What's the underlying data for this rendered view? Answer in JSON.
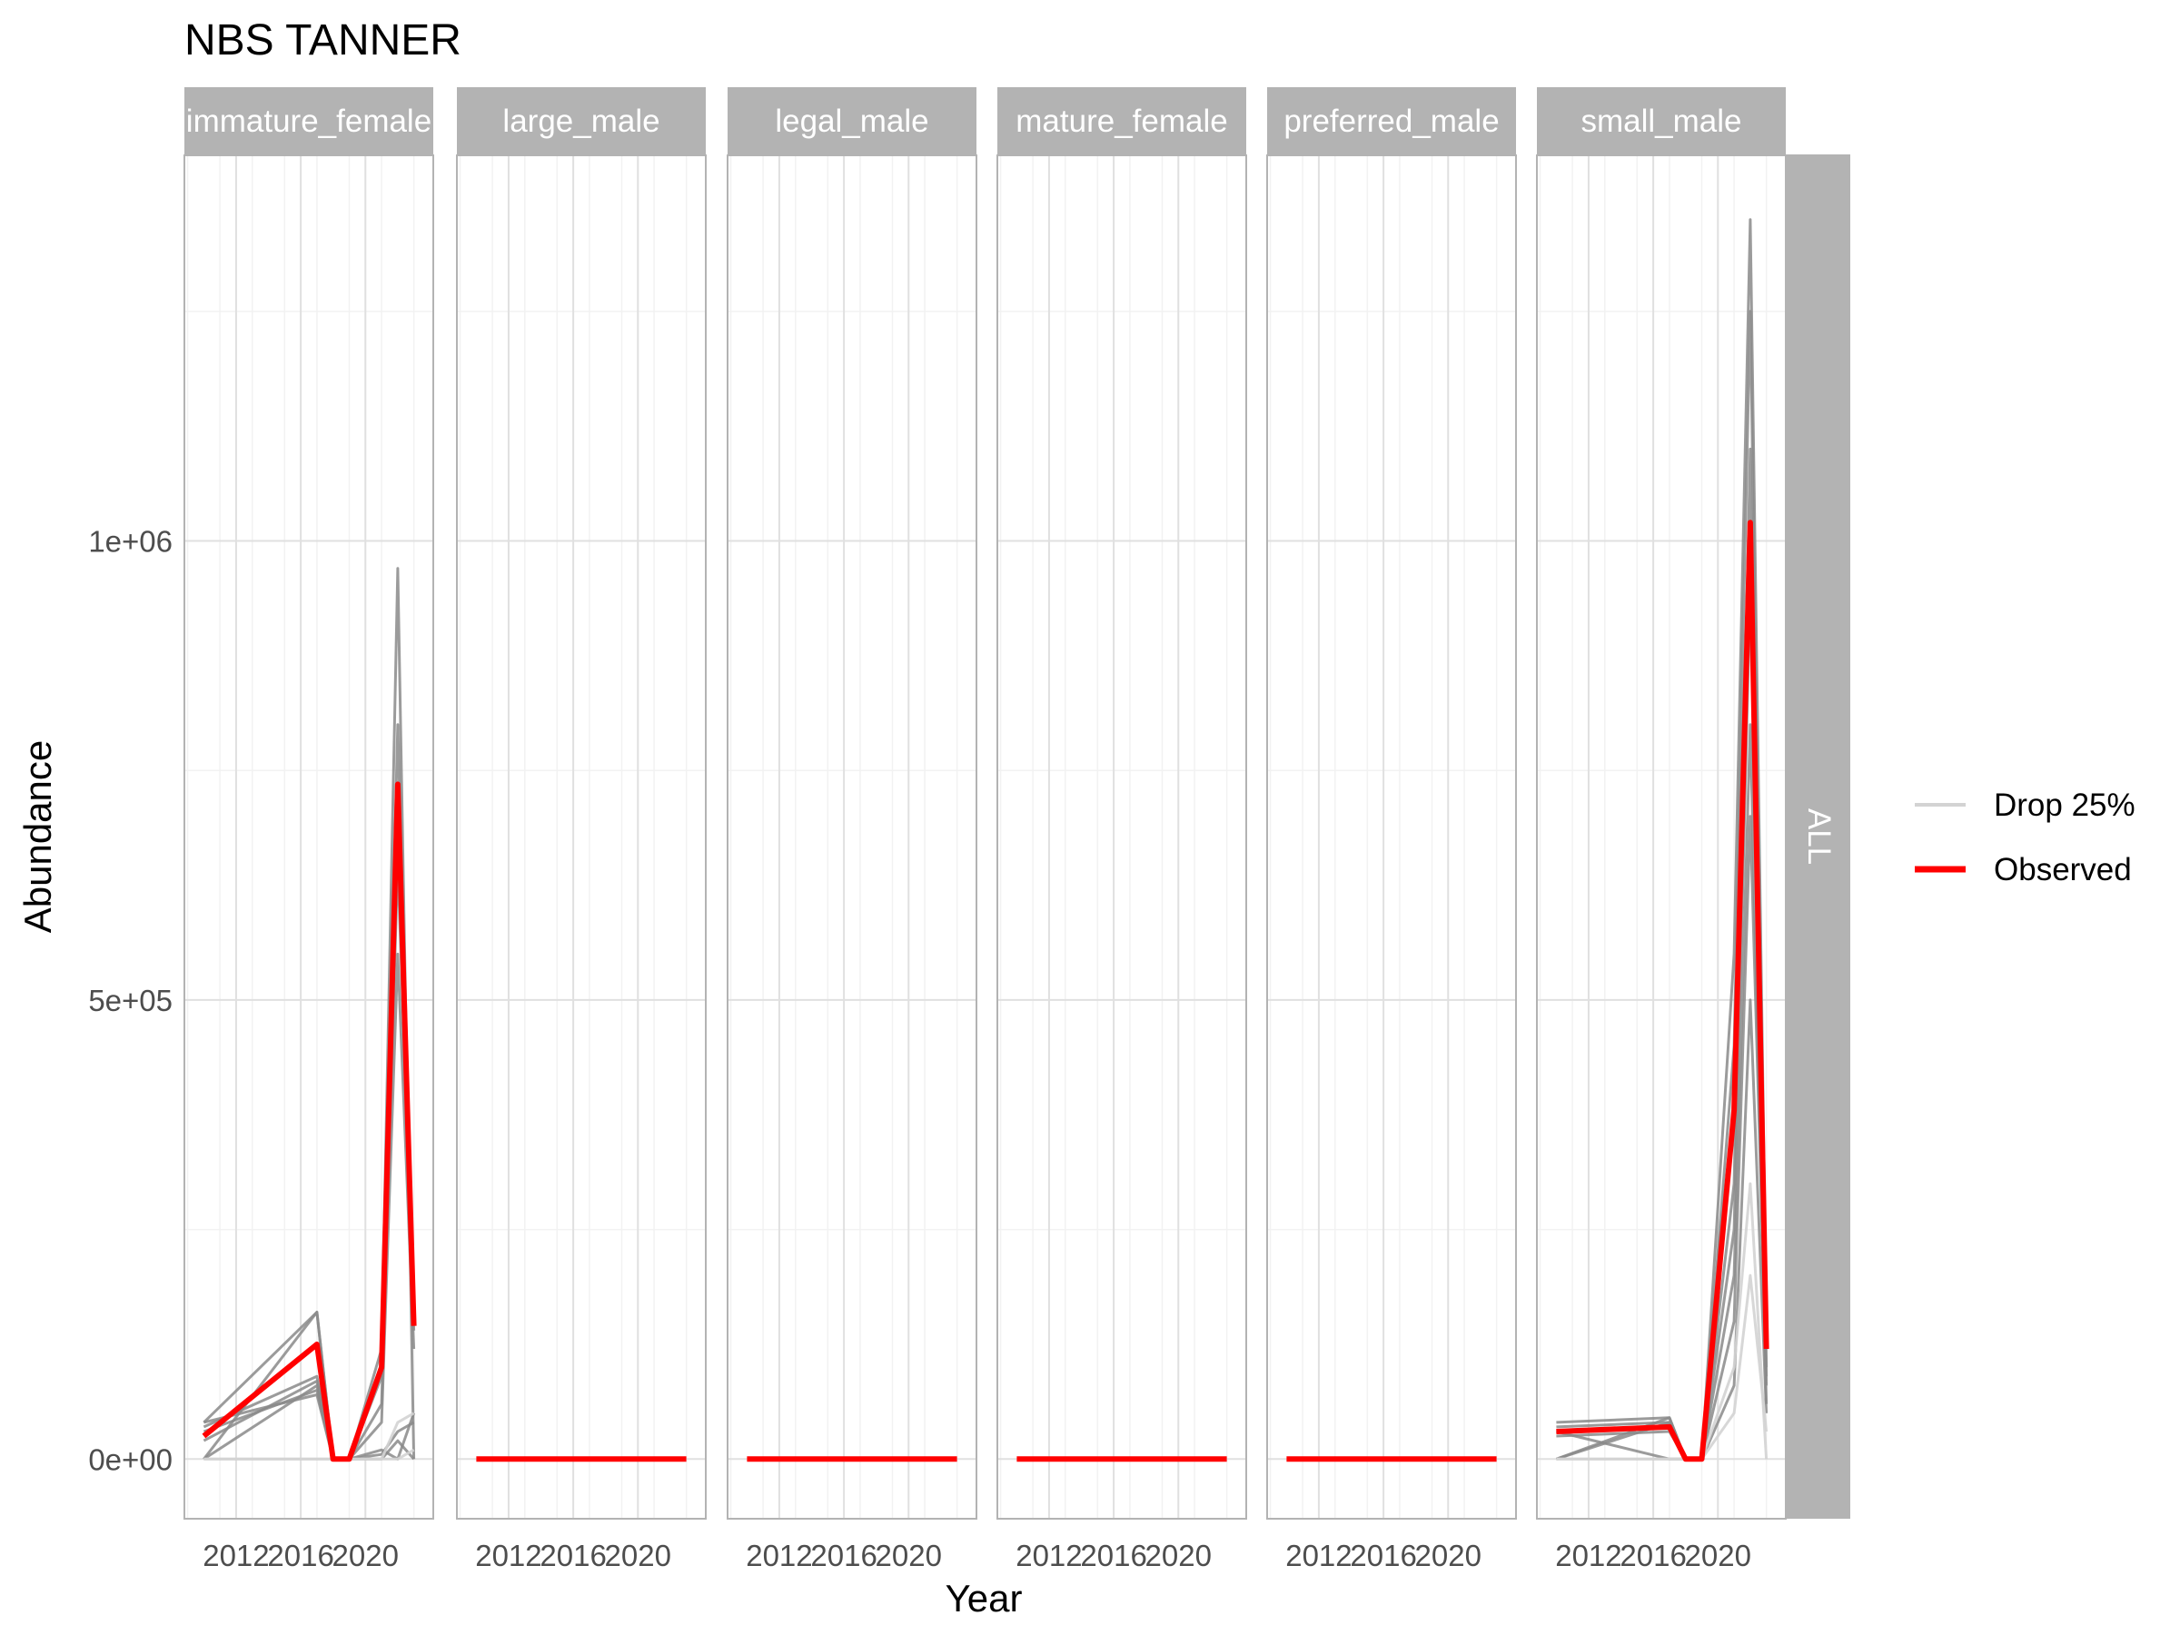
{
  "colors": {
    "observed": "#ff0000",
    "drop_light": "#d3d3d3",
    "drop_dark": "#8a8a8a",
    "strip_bg": "#b3b3b3",
    "panel_border": "#b3b3b3",
    "grid_major": "#e0e0e0",
    "grid_minor": "#f2f2f2"
  },
  "chart_data": {
    "type": "line",
    "title": "NBS TANNER",
    "xlabel": "Year",
    "ylabel": "Abundance",
    "row_strip": "ALL",
    "xlim": [
      2008.8,
      2024.2
    ],
    "ylim": [
      -65000,
      1420000
    ],
    "x_ticks": [
      2012,
      2016,
      2020
    ],
    "x_tick_labels": [
      "2012",
      "2016",
      "2020"
    ],
    "y_ticks": [
      0,
      500000,
      1000000
    ],
    "y_tick_labels": [
      "0e+00",
      "5e+05",
      "1e+06"
    ],
    "grid": true,
    "legend_position": "right",
    "legend": [
      {
        "key": "drop",
        "label": "Drop 25%"
      },
      {
        "key": "observed",
        "label": "Observed"
      }
    ],
    "facets": [
      {
        "label": "immature_female",
        "observed": {
          "x": [
            2010,
            2017,
            2018,
            2019,
            2021,
            2022,
            2023
          ],
          "y": [
            25000,
            125000,
            0,
            0,
            100000,
            735000,
            145000
          ]
        },
        "drops": [
          {
            "x": [
              2010,
              2017,
              2018,
              2019,
              2021,
              2022,
              2023
            ],
            "y": [
              40000,
              160000,
              0,
              0,
              120000,
              970000,
              0
            ],
            "shade": "dark"
          },
          {
            "x": [
              2010,
              2017,
              2018,
              2019,
              2021,
              2022,
              2023
            ],
            "y": [
              0,
              160000,
              0,
              0,
              90000,
              800000,
              150000
            ],
            "shade": "dark"
          },
          {
            "x": [
              2010,
              2017,
              2018,
              2019,
              2021,
              2022,
              2023
            ],
            "y": [
              35000,
              90000,
              0,
              0,
              60000,
              650000,
              140000
            ],
            "shade": "dark"
          },
          {
            "x": [
              2010,
              2017,
              2018,
              2019,
              2021,
              2022,
              2023
            ],
            "y": [
              0,
              80000,
              0,
              0,
              40000,
              550000,
              120000
            ],
            "shade": "dark"
          },
          {
            "x": [
              2010,
              2017,
              2018,
              2019,
              2021,
              2022,
              2023
            ],
            "y": [
              30000,
              75000,
              0,
              0,
              10000,
              0,
              50000
            ],
            "shade": "dark"
          },
          {
            "x": [
              2010,
              2017,
              2018,
              2019,
              2021,
              2022,
              2023
            ],
            "y": [
              20000,
              85000,
              0,
              0,
              5000,
              30000,
              40000
            ],
            "shade": "dark"
          },
          {
            "x": [
              2010,
              2017,
              2018,
              2019,
              2021,
              2022,
              2023
            ],
            "y": [
              40000,
              70000,
              0,
              0,
              0,
              20000,
              0
            ],
            "shade": "dark"
          },
          {
            "x": [
              2010,
              2017,
              2018,
              2019,
              2021,
              2022,
              2023
            ],
            "y": [
              0,
              0,
              0,
              0,
              0,
              40000,
              50000
            ],
            "shade": "light"
          },
          {
            "x": [
              2010,
              2017,
              2018,
              2019,
              2021,
              2022,
              2023
            ],
            "y": [
              0,
              0,
              0,
              0,
              0,
              0,
              10000
            ],
            "shade": "light"
          }
        ]
      },
      {
        "label": "large_male",
        "observed": {
          "x": [
            2010,
            2017,
            2018,
            2019,
            2021,
            2022,
            2023
          ],
          "y": [
            0,
            0,
            0,
            0,
            0,
            0,
            0
          ]
        },
        "drops": []
      },
      {
        "label": "legal_male",
        "observed": {
          "x": [
            2010,
            2017,
            2018,
            2019,
            2021,
            2022,
            2023
          ],
          "y": [
            0,
            0,
            0,
            0,
            0,
            0,
            0
          ]
        },
        "drops": []
      },
      {
        "label": "mature_female",
        "observed": {
          "x": [
            2010,
            2017,
            2018,
            2019,
            2021,
            2022,
            2023
          ],
          "y": [
            0,
            0,
            0,
            0,
            0,
            0,
            0
          ]
        },
        "drops": []
      },
      {
        "label": "preferred_male",
        "observed": {
          "x": [
            2010,
            2017,
            2018,
            2019,
            2021,
            2022,
            2023
          ],
          "y": [
            0,
            0,
            0,
            0,
            0,
            0,
            0
          ]
        },
        "drops": []
      },
      {
        "label": "small_male",
        "observed": {
          "x": [
            2010,
            2017,
            2018,
            2019,
            2021,
            2022,
            2023
          ],
          "y": [
            30000,
            35000,
            0,
            0,
            380000,
            1020000,
            120000
          ]
        },
        "drops": [
          {
            "x": [
              2010,
              2017,
              2018,
              2019,
              2021,
              2022,
              2023
            ],
            "y": [
              40000,
              45000,
              0,
              0,
              550000,
              1350000,
              150000
            ],
            "shade": "dark"
          },
          {
            "x": [
              2010,
              2017,
              2018,
              2019,
              2021,
              2022,
              2023
            ],
            "y": [
              0,
              45000,
              0,
              0,
              450000,
              1250000,
              100000
            ],
            "shade": "dark"
          },
          {
            "x": [
              2010,
              2017,
              2018,
              2019,
              2021,
              2022,
              2023
            ],
            "y": [
              35000,
              40000,
              0,
              0,
              300000,
              1100000,
              80000
            ],
            "shade": "dark"
          },
          {
            "x": [
              2010,
              2017,
              2018,
              2019,
              2021,
              2022,
              2023
            ],
            "y": [
              30000,
              0,
              0,
              0,
              250000,
              950000,
              120000
            ],
            "shade": "dark"
          },
          {
            "x": [
              2010,
              2017,
              2018,
              2019,
              2021,
              2022,
              2023
            ],
            "y": [
              0,
              40000,
              0,
              0,
              200000,
              800000,
              60000
            ],
            "shade": "dark"
          },
          {
            "x": [
              2010,
              2017,
              2018,
              2019,
              2021,
              2022,
              2023
            ],
            "y": [
              25000,
              30000,
              0,
              0,
              150000,
              700000,
              90000
            ],
            "shade": "dark"
          },
          {
            "x": [
              2010,
              2017,
              2018,
              2019,
              2021,
              2022,
              2023
            ],
            "y": [
              30000,
              35000,
              0,
              0,
              80000,
              500000,
              50000
            ],
            "shade": "dark"
          },
          {
            "x": [
              2010,
              2017,
              2018,
              2019,
              2021,
              2022,
              2023
            ],
            "y": [
              0,
              0,
              0,
              0,
              100000,
              300000,
              0
            ],
            "shade": "light"
          },
          {
            "x": [
              2010,
              2017,
              2018,
              2019,
              2021,
              2022,
              2023
            ],
            "y": [
              0,
              0,
              0,
              0,
              50000,
              200000,
              30000
            ],
            "shade": "light"
          }
        ]
      }
    ]
  }
}
